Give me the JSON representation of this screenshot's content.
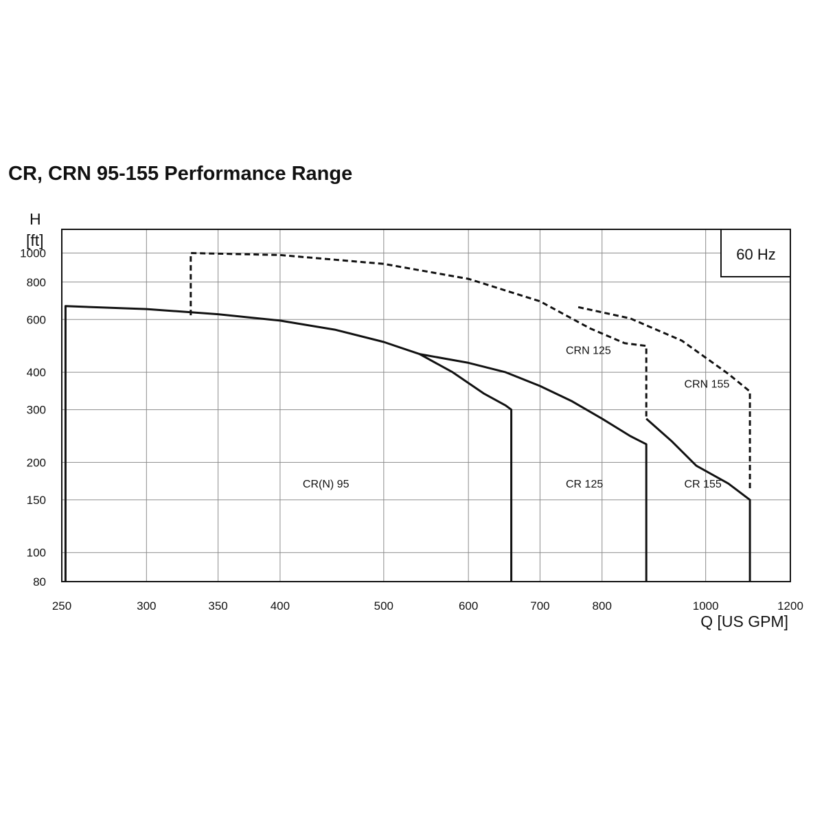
{
  "chart_data": {
    "type": "line",
    "title": "CR, CRN 95-155 Performance Range",
    "frequency_label": "60 Hz",
    "ylabel_symbol": "H",
    "ylabel_unit": "[ft]",
    "xlabel": "Q [US GPM]",
    "x_scale": "log",
    "y_scale": "log",
    "xlim": [
      250,
      1200
    ],
    "ylim": [
      80,
      1200
    ],
    "x_ticks": [
      250,
      300,
      350,
      400,
      500,
      600,
      700,
      800,
      1000,
      1200
    ],
    "y_ticks": [
      80,
      100,
      150,
      200,
      300,
      400,
      600,
      800,
      1000
    ],
    "grid": true,
    "region_labels": [
      {
        "text": "CR(N) 95",
        "x": 420,
        "y": 165
      },
      {
        "text": "CR 125",
        "x": 740,
        "y": 165
      },
      {
        "text": "CR 155",
        "x": 955,
        "y": 165
      },
      {
        "text": "CRN 125",
        "x": 740,
        "y": 460
      },
      {
        "text": "CRN 155",
        "x": 955,
        "y": 355
      }
    ],
    "series": [
      {
        "style": "solid",
        "x": [
          252,
          252,
          300,
          350,
          400,
          450,
          500,
          540,
          580,
          620,
          650,
          658,
          658
        ],
        "y": [
          80,
          665,
          650,
          625,
          595,
          555,
          505,
          460,
          400,
          340,
          310,
          300,
          80
        ]
      },
      {
        "style": "solid",
        "x": [
          540,
          600,
          650,
          700,
          750,
          800,
          850,
          880,
          880
        ],
        "y": [
          460,
          430,
          400,
          360,
          320,
          280,
          245,
          230,
          80
        ]
      },
      {
        "style": "solid",
        "x": [
          880,
          930,
          980,
          1050,
          1100,
          1100
        ],
        "y": [
          280,
          235,
          195,
          170,
          150,
          80
        ]
      },
      {
        "style": "dashed",
        "x": [
          330,
          330,
          400,
          500,
          600,
          700,
          780,
          840,
          880,
          880
        ],
        "y": [
          620,
          1000,
          985,
          920,
          820,
          690,
          560,
          500,
          490,
          280
        ]
      },
      {
        "style": "dashed",
        "x": [
          760,
          850,
          950,
          1050,
          1100,
          1100
        ],
        "y": [
          660,
          605,
          510,
          395,
          345,
          160
        ]
      }
    ]
  }
}
